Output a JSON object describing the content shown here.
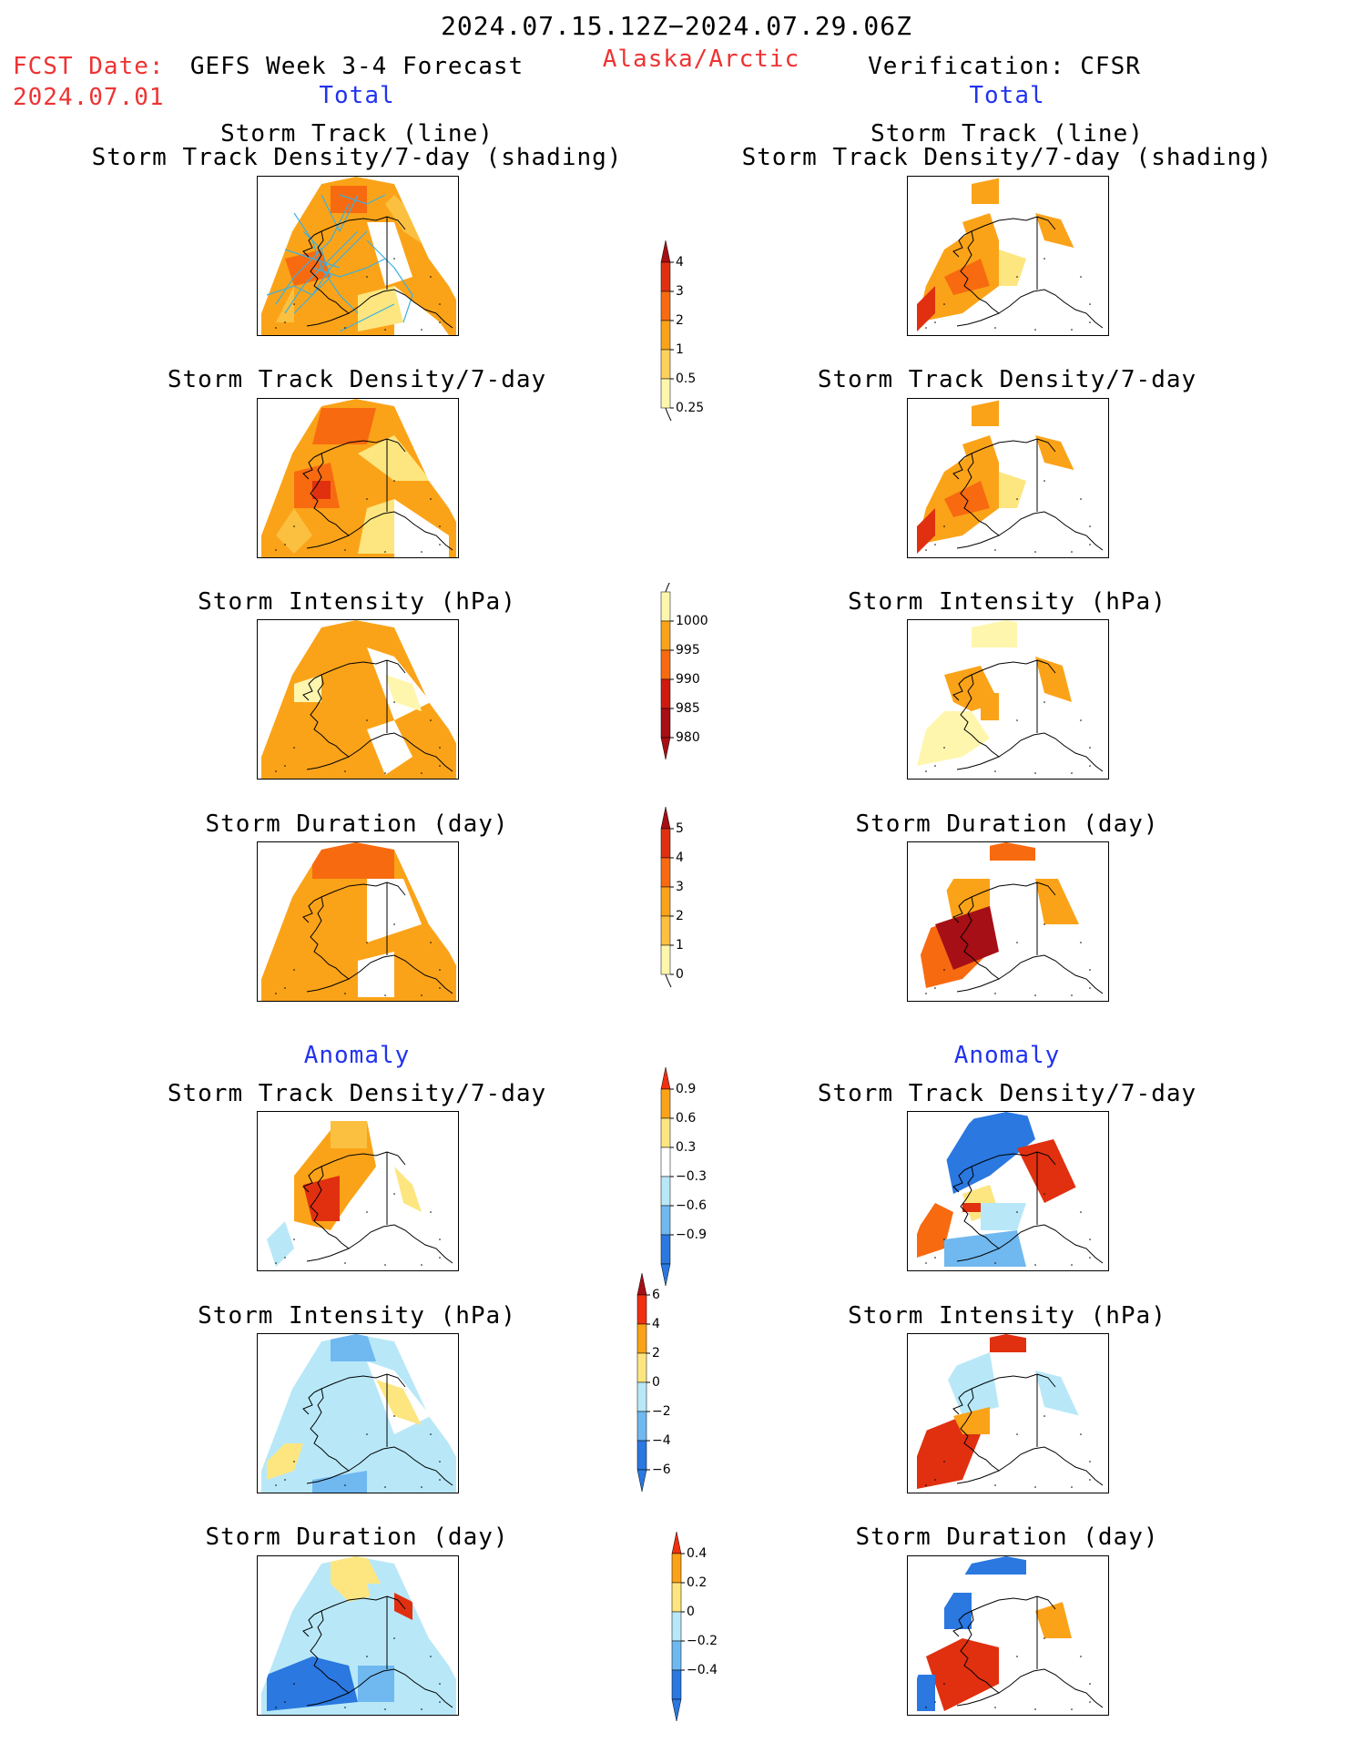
{
  "header": {
    "time_range": "2024.07.15.12Z−2024.07.29.06Z",
    "fcst_label": "FCST Date:",
    "fcst_date": "2024.07.01",
    "model": "GEFS Week 3-4 Forecast",
    "region": "Alaska/Arctic",
    "verification": "Verification: CFSR"
  },
  "sections": {
    "total_left": "Total",
    "total_right": "Total",
    "anomaly_left": "Anomaly",
    "anomaly_right": "Anomaly"
  },
  "titles": {
    "track_line": "Storm Track (line)",
    "track_density_shading": "Storm Track Density/7-day (shading)",
    "track_density": "Storm Track Density/7-day",
    "intensity": "Storm Intensity (hPa)",
    "duration": "Storm Duration (day)"
  },
  "colorbars": {
    "density_total": {
      "labels": [
        "4",
        "3",
        "2",
        "1",
        "0.5",
        "0.25"
      ],
      "colors": [
        "#a50f15",
        "#e03010",
        "#f86a10",
        "#fba318",
        "#fdd15c",
        "#fff6ae"
      ]
    },
    "intensity_total": {
      "labels": [
        "1000",
        "995",
        "990",
        "985",
        "980"
      ],
      "colors": [
        "#fff6ae",
        "#fba318",
        "#f86a10",
        "#d01a10",
        "#a50f15"
      ]
    },
    "duration_total": {
      "labels": [
        "5",
        "4",
        "3",
        "2",
        "1",
        "0"
      ],
      "colors": [
        "#a50f15",
        "#e03010",
        "#f86a10",
        "#fba318",
        "#fbc040",
        "#fff6ae"
      ]
    },
    "density_anom": {
      "labels": [
        "0.9",
        "0.6",
        "0.3",
        "−0.3",
        "−0.6",
        "−0.9"
      ],
      "colors": [
        "#f03010",
        "#fba318",
        "#fde680",
        "#ffffff",
        "#b8e8f8",
        "#70b8f0",
        "#2a78e0"
      ]
    },
    "intensity_anom": {
      "labels": [
        "6",
        "4",
        "2",
        "0",
        "−2",
        "−4",
        "−6"
      ],
      "colors": [
        "#a50f15",
        "#f03010",
        "#fba318",
        "#fde680",
        "#b8e8f8",
        "#70b8f0",
        "#2a78e0"
      ]
    },
    "duration_anom": {
      "labels": [
        "0.4",
        "0.2",
        "0",
        "−0.2",
        "−0.4"
      ],
      "colors": [
        "#f03010",
        "#fba318",
        "#fde680",
        "#b8e8f8",
        "#70b8f0",
        "#2a78e0"
      ]
    }
  },
  "palette": {
    "light": "#fff6ae",
    "yellow": "#fde680",
    "lorange": "#fbc040",
    "orange": "#fba318",
    "dorange": "#f86a10",
    "red": "#e03010",
    "dred": "#a50f15",
    "lblue": "#b8e8f8",
    "mblue": "#70b8f0",
    "blue": "#2a78e0",
    "track": "#3cb0e0"
  }
}
